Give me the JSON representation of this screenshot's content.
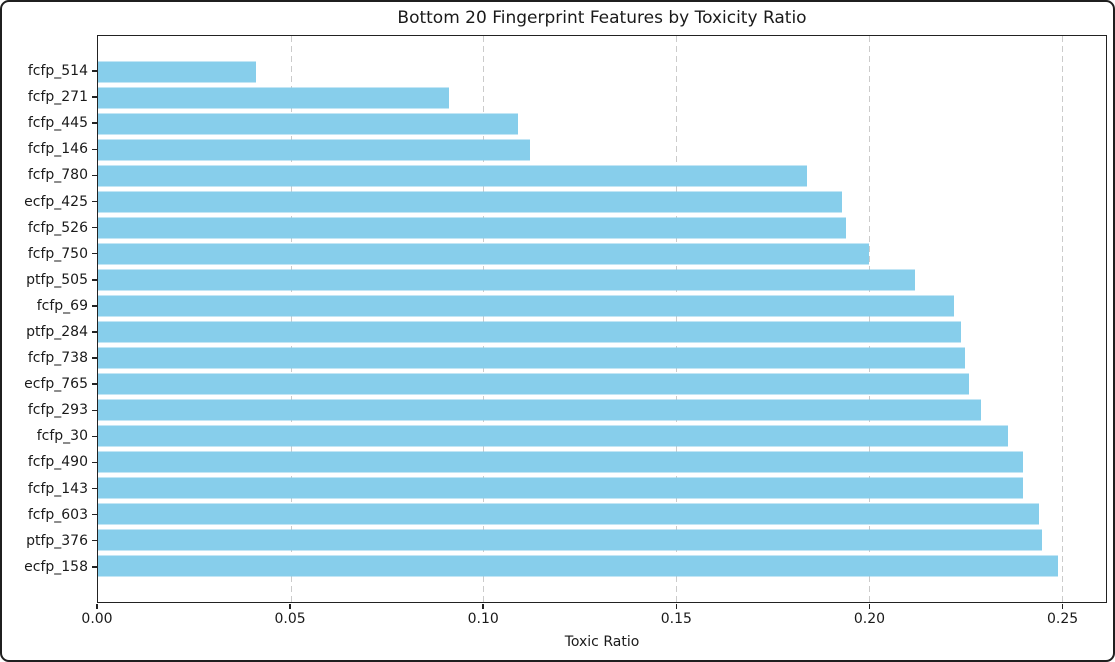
{
  "chart_data": {
    "type": "bar",
    "orientation": "horizontal",
    "title": "Bottom 20 Fingerprint Features by Toxicity Ratio",
    "xlabel": "Toxic Ratio",
    "ylabel": "",
    "categories": [
      "fcfp_514",
      "fcfp_271",
      "fcfp_445",
      "fcfp_146",
      "fcfp_780",
      "ecfp_425",
      "fcfp_526",
      "fcfp_750",
      "ptfp_505",
      "fcfp_69",
      "ptfp_284",
      "fcfp_738",
      "ecfp_765",
      "fcfp_293",
      "fcfp_30",
      "fcfp_490",
      "fcfp_143",
      "fcfp_603",
      "ptfp_376",
      "ecfp_158"
    ],
    "values": [
      0.041,
      0.091,
      0.109,
      0.112,
      0.184,
      0.193,
      0.194,
      0.2,
      0.212,
      0.222,
      0.224,
      0.225,
      0.226,
      0.229,
      0.236,
      0.24,
      0.24,
      0.244,
      0.245,
      0.249
    ],
    "xlim": [
      0,
      0.2615
    ],
    "xtick_values": [
      0,
      0.05,
      0.1,
      0.15,
      0.2,
      0.25
    ],
    "xtick_labels": [
      "0.00",
      "0.05",
      "0.10",
      "0.15",
      "0.20",
      "0.25"
    ],
    "bar_color": "#87CEEB",
    "grid": {
      "axis": "x",
      "style": "dashed",
      "color": "#cbcbcb"
    },
    "legend": "none",
    "frame_color": "#222222"
  }
}
